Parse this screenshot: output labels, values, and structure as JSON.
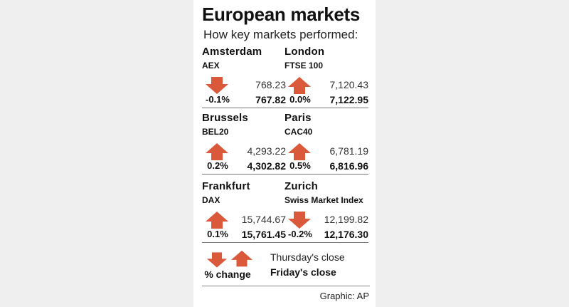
{
  "title": "European markets",
  "subtitle": "How key markets performed:",
  "markets": [
    {
      "city": "Amsterdam",
      "index": "AEX",
      "direction": "down",
      "change": "-0.1%",
      "thursday": "768.23",
      "friday": "767.82"
    },
    {
      "city": "London",
      "index": "FTSE 100",
      "direction": "up",
      "change": "0.0%",
      "thursday": "7,120.43",
      "friday": "7,122.95"
    },
    {
      "city": "Brussels",
      "index": "BEL20",
      "direction": "up",
      "change": "0.2%",
      "thursday": "4,293.22",
      "friday": "4,302.82"
    },
    {
      "city": "Paris",
      "index": "CAC40",
      "direction": "up",
      "change": "0.5%",
      "thursday": "6,781.19",
      "friday": "6,816.96"
    },
    {
      "city": "Frankfurt",
      "index": "DAX",
      "direction": "up",
      "change": "0.1%",
      "thursday": "15,744.67",
      "friday": "15,761.45"
    },
    {
      "city": "Zurich",
      "index": "Swiss Market Index",
      "direction": "down",
      "change": "-0.2%",
      "thursday": "12,199.82",
      "friday": "12,176.30"
    }
  ],
  "legend": {
    "change_label": "% change",
    "thursday_label": "Thursday's close",
    "friday_label": "Friday's close"
  },
  "credit": "Graphic: AP",
  "colors": {
    "arrow": "#d9593a",
    "panel_background": "#ffffff",
    "page_background": "#efefef"
  }
}
